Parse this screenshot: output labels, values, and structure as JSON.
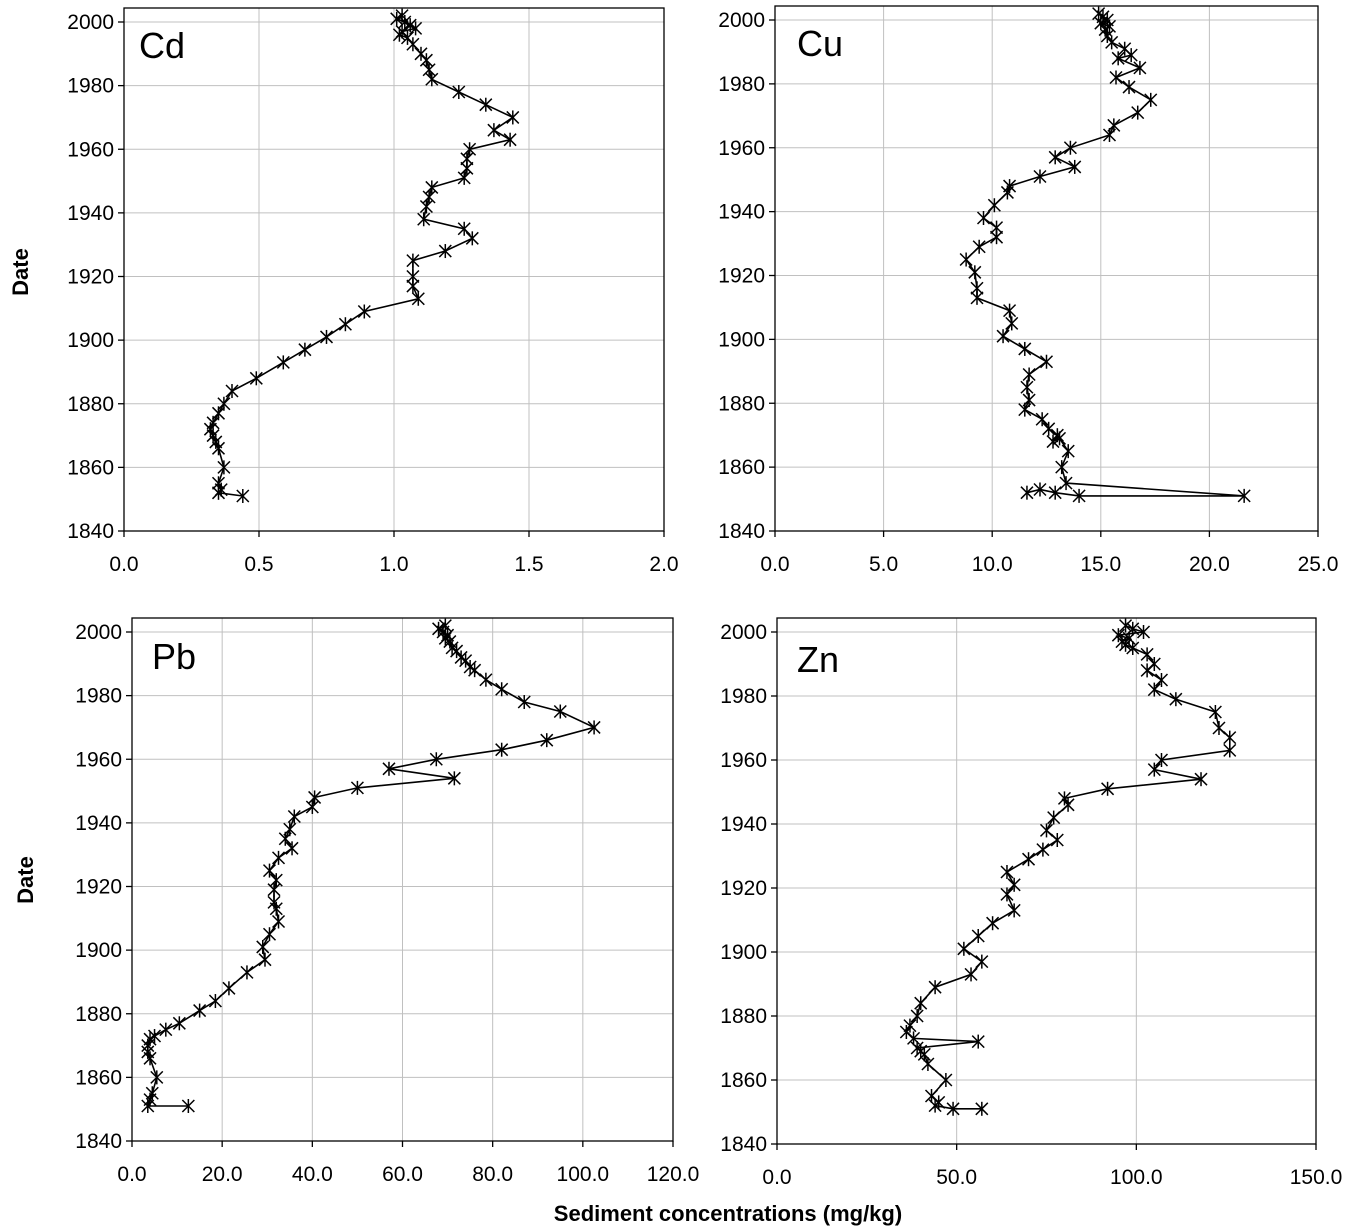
{
  "figure": {
    "y_axis_title": "Date",
    "x_axis_title": "Sediment concentrations (mg/kg)"
  },
  "chart_data": [
    {
      "type": "line",
      "title": "Cd",
      "xlabel": "",
      "ylabel": "Date",
      "xlim": [
        0,
        2.0
      ],
      "ylim": [
        1840,
        2005
      ],
      "x_ticks": [
        "0.0",
        "0.5",
        "1.0",
        "1.5",
        "2.0"
      ],
      "y_ticks": [
        "1840",
        "1860",
        "1880",
        "1900",
        "1920",
        "1940",
        "1960",
        "1980",
        "2000"
      ],
      "grid": true,
      "marker": "asterisk",
      "series": [
        {
          "x": [
            1.03,
            1.01,
            1.04,
            1.06,
            1.08,
            1.03,
            1.02,
            1.05,
            1.07,
            1.1,
            1.12,
            1.13,
            1.14,
            1.24,
            1.34,
            1.44,
            1.37,
            1.43,
            1.28,
            1.27,
            1.27,
            1.26,
            1.14,
            1.13,
            1.12,
            1.11,
            1.26,
            1.29,
            1.19,
            1.07,
            1.07,
            1.07,
            1.09,
            0.89,
            0.82,
            0.75,
            0.67,
            0.59,
            0.49,
            0.4,
            0.37,
            0.35,
            0.33,
            0.32,
            0.33,
            0.34,
            0.35,
            0.37,
            0.35,
            0.36,
            0.35,
            0.44
          ],
          "y": [
            2002,
            2001,
            2000,
            1999,
            1998,
            1997,
            1996,
            1995,
            1993,
            1990,
            1988,
            1985,
            1982,
            1978,
            1974,
            1970,
            1966,
            1963,
            1960,
            1957,
            1954,
            1951,
            1948,
            1945,
            1942,
            1938,
            1935,
            1932,
            1928,
            1925,
            1920,
            1917,
            1913,
            1909,
            1905,
            1901,
            1897,
            1893,
            1888,
            1884,
            1880,
            1877,
            1874,
            1872,
            1870,
            1868,
            1866,
            1860,
            1855,
            1853,
            1852,
            1851
          ]
        }
      ]
    },
    {
      "type": "line",
      "title": "Cu",
      "xlabel": "",
      "ylabel": "",
      "xlim": [
        0,
        25.0
      ],
      "ylim": [
        1840,
        2005
      ],
      "x_ticks": [
        "0.0",
        "5.0",
        "10.0",
        "15.0",
        "20.0",
        "25.0"
      ],
      "y_ticks": [
        "1840",
        "1860",
        "1880",
        "1900",
        "1920",
        "1940",
        "1960",
        "1980",
        "2000"
      ],
      "grid": true,
      "marker": "asterisk",
      "series": [
        {
          "x": [
            14.9,
            15.1,
            15.3,
            15.0,
            15.4,
            15.2,
            15.3,
            15.5,
            16.1,
            16.4,
            15.8,
            16.8,
            15.7,
            16.3,
            17.3,
            16.7,
            15.6,
            15.4,
            13.6,
            12.9,
            13.8,
            12.2,
            10.8,
            10.7,
            10.1,
            9.6,
            10.2,
            10.2,
            9.4,
            8.8,
            9.2,
            9.3,
            9.3,
            10.8,
            10.9,
            10.5,
            11.5,
            12.5,
            11.7,
            11.6,
            11.7,
            11.5,
            12.3,
            12.6,
            13.0,
            12.8,
            13.1,
            13.5,
            13.2,
            13.4,
            21.6,
            14.0,
            12.9,
            12.2,
            11.6
          ],
          "y": [
            2002,
            2001,
            2000,
            1999,
            1998,
            1997,
            1995,
            1993,
            1991,
            1989,
            1988,
            1985,
            1982,
            1979,
            1975,
            1971,
            1967,
            1964,
            1960,
            1957,
            1954,
            1951,
            1948,
            1946,
            1942,
            1938,
            1935,
            1932,
            1929,
            1925,
            1921,
            1916,
            1913,
            1909,
            1905,
            1901,
            1897,
            1893,
            1889,
            1885,
            1881,
            1878,
            1875,
            1872,
            1870,
            1868,
            1869,
            1865,
            1860,
            1855,
            1851,
            1851,
            1852,
            1853,
            1852
          ]
        }
      ]
    },
    {
      "type": "line",
      "title": "Pb",
      "xlabel": "",
      "ylabel": "Date",
      "xlim": [
        0,
        120.0
      ],
      "ylim": [
        1840,
        2005
      ],
      "x_ticks": [
        "0.0",
        "20.0",
        "40.0",
        "60.0",
        "80.0",
        "100.0",
        "120.0"
      ],
      "y_ticks": [
        "1840",
        "1860",
        "1880",
        "1900",
        "1920",
        "1940",
        "1960",
        "1980",
        "2000"
      ],
      "grid": true,
      "marker": "asterisk",
      "series": [
        {
          "x": [
            69.5,
            68.0,
            69.0,
            70.0,
            69.5,
            70.5,
            71.0,
            72.0,
            73.0,
            74.0,
            75.0,
            76.0,
            78.5,
            82.0,
            87.0,
            95.0,
            102.5,
            92.0,
            82.0,
            67.5,
            57.0,
            71.5,
            50.0,
            40.5,
            40.0,
            36.0,
            35.0,
            34.0,
            35.5,
            32.5,
            30.5,
            32.0,
            31.5,
            31.5,
            32.0,
            32.5,
            30.5,
            29.0,
            29.5,
            25.5,
            21.5,
            18.5,
            15.0,
            10.5,
            7.5,
            5.0,
            4.0,
            3.5,
            3.5,
            4.0,
            5.5,
            4.5,
            4.0,
            3.5,
            12.5
          ],
          "y": [
            2002,
            2001,
            2000,
            1999,
            1998,
            1997,
            1995,
            1994,
            1992,
            1991,
            1989,
            1988,
            1985,
            1982,
            1978,
            1975,
            1970,
            1966,
            1963,
            1960,
            1957,
            1954,
            1951,
            1948,
            1945,
            1942,
            1938,
            1935,
            1932,
            1929,
            1925,
            1922,
            1919,
            1915,
            1913,
            1909,
            1905,
            1901,
            1897,
            1893,
            1888,
            1884,
            1881,
            1877,
            1875,
            1873,
            1872,
            1870,
            1868,
            1866,
            1860,
            1855,
            1853,
            1851,
            1851
          ]
        }
      ]
    },
    {
      "type": "line",
      "title": "Zn",
      "xlabel": "",
      "ylabel": "",
      "xlim": [
        0,
        150.0
      ],
      "ylim": [
        1840,
        2005
      ],
      "x_ticks": [
        "0.0",
        "50.0",
        "100.0",
        "150.0"
      ],
      "y_ticks": [
        "1840",
        "1860",
        "1880",
        "1900",
        "1920",
        "1940",
        "1960",
        "1980",
        "2000"
      ],
      "grid": true,
      "marker": "asterisk",
      "series": [
        {
          "x": [
            97.0,
            99.0,
            102.0,
            95.0,
            98.0,
            96.0,
            97.0,
            99.0,
            103.0,
            105.0,
            103.0,
            107.0,
            105.0,
            111.0,
            122.0,
            123.0,
            126.0,
            126.0,
            107.0,
            105.0,
            118.0,
            92.0,
            80.0,
            81.0,
            77.0,
            75.0,
            78.0,
            74.0,
            70.0,
            64.0,
            66.0,
            64.0,
            66.0,
            60.0,
            56.0,
            52.0,
            57.0,
            54.0,
            44.0,
            40.0,
            39.0,
            37.0,
            36.0,
            38.0,
            56.0,
            39.0,
            40.0,
            41.0,
            42.0,
            47.0,
            43.0,
            45.0,
            44.0,
            49.0,
            57.0
          ],
          "y": [
            2002,
            2001,
            2000,
            1999,
            1998,
            1997,
            1996,
            1995,
            1993,
            1990,
            1988,
            1985,
            1982,
            1979,
            1975,
            1970,
            1967,
            1963,
            1960,
            1957,
            1954,
            1951,
            1948,
            1946,
            1942,
            1938,
            1935,
            1932,
            1929,
            1925,
            1921,
            1918,
            1913,
            1909,
            1905,
            1901,
            1897,
            1893,
            1889,
            1884,
            1880,
            1877,
            1875,
            1873,
            1872,
            1870,
            1869,
            1868,
            1865,
            1860,
            1855,
            1853,
            1852,
            1851,
            1851
          ]
        }
      ]
    }
  ]
}
